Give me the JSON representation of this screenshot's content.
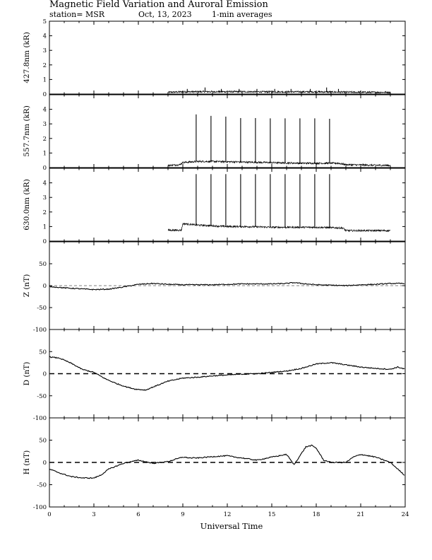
{
  "header": {
    "title": "Magnetic Field Variation and Auroral Emission",
    "station": "station= MSR",
    "date": "Oct, 13, 2023",
    "averaging": "1-min averages"
  },
  "chart_data": {
    "type": "line",
    "x_axis": {
      "label": "Universal Time",
      "range": [
        0,
        24
      ],
      "ticks": [
        0,
        3,
        6,
        9,
        12,
        15,
        18,
        21,
        24
      ],
      "tick_labels": [
        "0",
        "3",
        "6",
        "9",
        "12",
        "15",
        "18",
        "21",
        "24"
      ]
    },
    "panels": [
      {
        "id": "p427",
        "ylabel": "427.8nm (kR)",
        "ylim": [
          0,
          5
        ],
        "yticks": [
          0,
          1,
          2,
          3,
          4,
          5
        ],
        "ytick_labels": [
          "0",
          "1",
          "2",
          "3",
          "4",
          "5"
        ],
        "zero_line": "none",
        "noisy": true,
        "series": [
          {
            "x": [
              8.0,
              9.0,
              10.0,
              11.0,
              12.0,
              13.0,
              14.0,
              15.0,
              16.0,
              17.0,
              18.0,
              19.0,
              20.0,
              21.0,
              22.0,
              23.0
            ],
            "y": [
              0.12,
              0.15,
              0.16,
              0.16,
              0.16,
              0.16,
              0.15,
              0.15,
              0.15,
              0.15,
              0.15,
              0.14,
              0.13,
              0.12,
              0.12,
              0.12
            ]
          }
        ],
        "spikes": {
          "x": [
            9.3,
            10.5,
            11.6,
            12.8,
            14.0,
            15.2,
            16.3,
            17.6,
            18.7,
            19.5
          ],
          "y": [
            0.35,
            0.45,
            0.35,
            0.35,
            0.35,
            0.35,
            0.35,
            0.35,
            0.45,
            0.35
          ]
        }
      },
      {
        "id": "p557",
        "ylabel": "557.7nm (kR)",
        "ylim": [
          0,
          5
        ],
        "yticks": [
          0,
          1,
          2,
          3,
          4
        ],
        "ytick_labels": [
          "0",
          "1",
          "2",
          "3",
          "4"
        ],
        "zero_line": "none",
        "noisy": true,
        "series": [
          {
            "x": [
              8.0,
              8.8,
              9.0,
              10.0,
              11.0,
              12.0,
              13.0,
              14.0,
              15.0,
              16.0,
              17.0,
              18.0,
              19.0,
              19.5,
              20.0,
              21.0,
              22.0,
              23.0
            ],
            "y": [
              0.15,
              0.2,
              0.35,
              0.42,
              0.42,
              0.4,
              0.38,
              0.36,
              0.34,
              0.32,
              0.3,
              0.3,
              0.3,
              0.3,
              0.2,
              0.18,
              0.16,
              0.15
            ]
          }
        ],
        "spikes": {
          "x": [
            9.9,
            10.9,
            11.9,
            12.9,
            13.9,
            14.9,
            15.9,
            16.9,
            17.9,
            18.9
          ],
          "y": [
            3.65,
            3.55,
            3.5,
            3.4,
            3.4,
            3.38,
            3.38,
            3.38,
            3.38,
            3.35
          ]
        }
      },
      {
        "id": "p630",
        "ylabel": "630.0nm (kR)",
        "ylim": [
          0,
          5
        ],
        "yticks": [
          0,
          1,
          2,
          3,
          4
        ],
        "ytick_labels": [
          "0",
          "1",
          "2",
          "3",
          "4"
        ],
        "zero_line": "none",
        "noisy": true,
        "series": [
          {
            "x": [
              8.0,
              8.9,
              9.0,
              10.0,
              11.0,
              12.0,
              13.0,
              14.0,
              15.0,
              16.0,
              17.0,
              18.0,
              19.0,
              19.8,
              20.0,
              21.0,
              22.0,
              23.0
            ],
            "y": [
              0.75,
              0.75,
              1.2,
              1.1,
              1.05,
              1.0,
              1.0,
              0.98,
              0.95,
              0.95,
              0.95,
              0.95,
              0.92,
              0.9,
              0.72,
              0.72,
              0.72,
              0.72
            ]
          }
        ],
        "spikes": {
          "x": [
            9.9,
            10.9,
            11.9,
            12.9,
            13.9,
            14.9,
            15.9,
            16.9,
            17.9,
            18.9
          ],
          "y": [
            4.6,
            4.6,
            4.6,
            4.6,
            4.6,
            4.6,
            4.6,
            4.6,
            4.6,
            4.6
          ]
        }
      },
      {
        "id": "pZ",
        "ylabel": "Z (nT)",
        "ylim": [
          -100,
          100
        ],
        "yticks": [
          -100,
          -50,
          0,
          50
        ],
        "ytick_labels": [
          "-100",
          "-50",
          "0",
          "50"
        ],
        "zero_line": "thin",
        "noisy": false,
        "series": [
          {
            "x": [
              0,
              1,
              2,
              3,
              4,
              5,
              6,
              7,
              8,
              9,
              10,
              11,
              12,
              13,
              14,
              15,
              16,
              16.5,
              17,
              18,
              19,
              20,
              21,
              22,
              23,
              24
            ],
            "y": [
              -2,
              -5,
              -7,
              -9,
              -8,
              -3,
              3,
              5,
              3,
              2,
              2,
              2,
              3,
              4,
              4,
              4,
              5,
              7,
              5,
              2,
              1,
              0,
              2,
              3,
              5,
              5
            ]
          }
        ]
      },
      {
        "id": "pD",
        "ylabel": "D (nT)",
        "ylim": [
          -100,
          100
        ],
        "yticks": [
          -100,
          -50,
          0,
          50
        ],
        "ytick_labels": [
          "-100",
          "-50",
          "0",
          "50"
        ],
        "zero_line": "dashed",
        "noisy": false,
        "series": [
          {
            "x": [
              0,
              0.7,
              1.5,
              2.2,
              3.0,
              3.8,
              4.5,
              5.2,
              5.8,
              6.5,
              7.0,
              8.0,
              9.0,
              10.0,
              11.0,
              12.0,
              13.0,
              14.0,
              15.0,
              16.0,
              17.0,
              18.0,
              19.0,
              20.0,
              21.0,
              22.0,
              23.0,
              23.5,
              24.0
            ],
            "y": [
              38,
              35,
              23,
              10,
              3,
              -12,
              -22,
              -30,
              -35,
              -37,
              -30,
              -17,
              -10,
              -8,
              -5,
              -3,
              -1,
              0,
              3,
              6,
              12,
              22,
              25,
              20,
              15,
              12,
              10,
              15,
              10
            ]
          }
        ]
      },
      {
        "id": "pH",
        "ylabel": "H (nT)",
        "ylim": [
          -100,
          100
        ],
        "yticks": [
          -100,
          -50,
          0,
          50
        ],
        "ytick_labels": [
          "-100",
          "-50",
          "0",
          "50"
        ],
        "zero_line": "dashed",
        "noisy": false,
        "series": [
          {
            "x": [
              0,
              0.8,
              1.5,
              2.3,
              3.0,
              3.5,
              4.0,
              5.0,
              6.0,
              7.0,
              8.0,
              9.0,
              9.5,
              10.0,
              11.0,
              12.0,
              12.5,
              13.0,
              14.0,
              15.0,
              16.0,
              16.5,
              17.0,
              17.3,
              17.7,
              18.0,
              18.5,
              19.0,
              20.0,
              20.5,
              21.0,
              22.0,
              23.0,
              24.0
            ],
            "y": [
              -15,
              -25,
              -32,
              -35,
              -35,
              -28,
              -15,
              -2,
              5,
              -2,
              2,
              12,
              10,
              10,
              13,
              15,
              12,
              10,
              5,
              12,
              18,
              -5,
              20,
              35,
              38,
              32,
              5,
              0,
              0,
              12,
              18,
              12,
              0,
              -30
            ]
          }
        ]
      }
    ]
  }
}
